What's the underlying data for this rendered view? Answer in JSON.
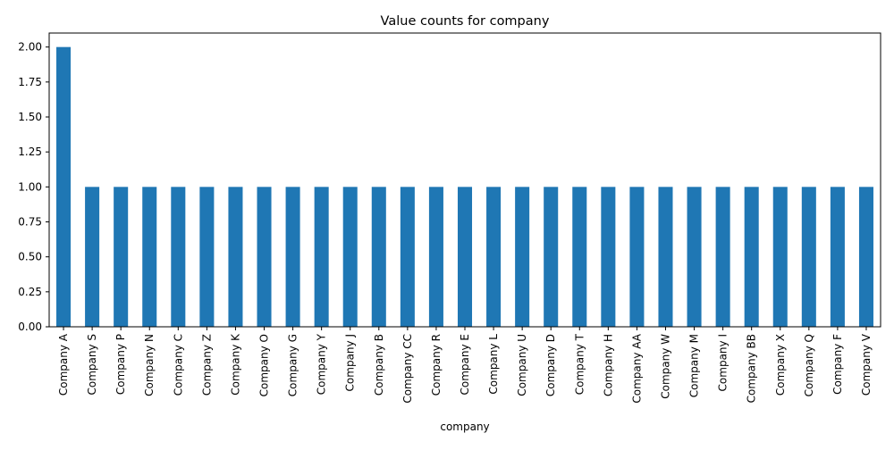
{
  "chart_data": {
    "type": "bar",
    "title": "Value counts for company",
    "xlabel": "company",
    "ylabel": "",
    "categories": [
      "Company A",
      "Company S",
      "Company P",
      "Company N",
      "Company C",
      "Company Z",
      "Company K",
      "Company O",
      "Company G",
      "Company Y",
      "Company J",
      "Company B",
      "Company CC",
      "Company R",
      "Company E",
      "Company L",
      "Company U",
      "Company D",
      "Company T",
      "Company H",
      "Company AA",
      "Company W",
      "Company M",
      "Company I",
      "Company BB",
      "Company X",
      "Company Q",
      "Company F",
      "Company V"
    ],
    "values": [
      2,
      1,
      1,
      1,
      1,
      1,
      1,
      1,
      1,
      1,
      1,
      1,
      1,
      1,
      1,
      1,
      1,
      1,
      1,
      1,
      1,
      1,
      1,
      1,
      1,
      1,
      1,
      1,
      1
    ],
    "ylim": [
      0,
      2.1
    ],
    "yticks": [
      "0.00",
      "0.25",
      "0.50",
      "0.75",
      "1.00",
      "1.25",
      "1.50",
      "1.75",
      "2.00"
    ],
    "bar_color": "#1f77b4",
    "grid": false,
    "legend": "none"
  }
}
